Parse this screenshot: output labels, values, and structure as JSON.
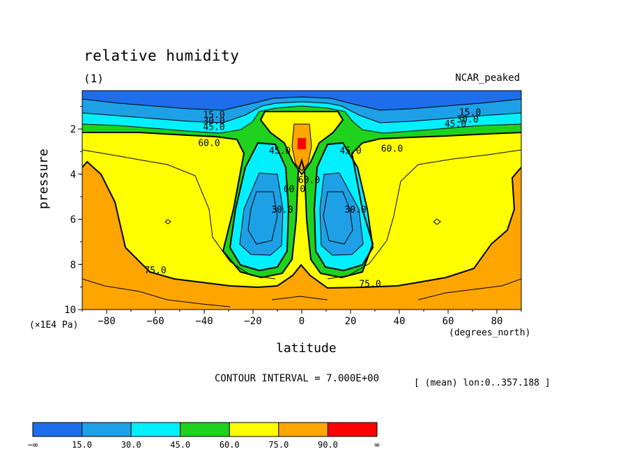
{
  "title": "relative humidity",
  "subtitle": "(1)",
  "config_label": "NCAR_peaked",
  "contour_interval_label": "CONTOUR INTERVAL = 7.000E+00",
  "mean_label": "[ (mean) lon:0..357.188 ]",
  "colors": {
    "below_15": "#1e6eeb",
    "15_30": "#1ea0e6",
    "30_45": "#00f0ff",
    "45_60": "#1ed21e",
    "60_75": "#ffff00",
    "75_90": "#ffa500",
    "above_90": "#ff0000"
  },
  "chart_data": {
    "type": "contour",
    "variable": "relative humidity",
    "xlabel": "latitude",
    "x_unit": "(degrees_north)",
    "ylabel": "pressure",
    "y_unit": "(×1E4 Pa)",
    "xlim": [
      -90,
      90
    ],
    "ylim": [
      10,
      0.3
    ],
    "x_ticks": [
      -80,
      -60,
      -40,
      -20,
      0,
      20,
      40,
      60,
      80
    ],
    "x_tick_labels": [
      "−80",
      "−60",
      "−40",
      "−20",
      "0",
      "20",
      "40",
      "60",
      "80"
    ],
    "y_ticks": [
      2,
      4,
      6,
      8,
      10
    ],
    "y_tick_labels": [
      "2",
      "4",
      "6",
      "8",
      "10"
    ],
    "contour_interval": 7.0,
    "colorbar": {
      "levels": [
        "−∞",
        "15.0",
        "30.0",
        "45.0",
        "60.0",
        "75.0",
        "90.0",
        "∞"
      ],
      "bins": [
        {
          "range": "<15",
          "color": "#1e6eeb"
        },
        {
          "range": "15-30",
          "color": "#1ea0e6"
        },
        {
          "range": "30-45",
          "color": "#00f0ff"
        },
        {
          "range": "45-60",
          "color": "#1ed21e"
        },
        {
          "range": "60-75",
          "color": "#ffff00"
        },
        {
          "range": "75-90",
          "color": "#ffa500"
        },
        {
          "range": ">90",
          "color": "#ff0000"
        }
      ]
    },
    "contour_labels": [
      {
        "text": "15.0",
        "lat": -36,
        "p": 1.5
      },
      {
        "text": "30.0",
        "lat": -36,
        "p": 1.78
      },
      {
        "text": "45.0",
        "lat": -36,
        "p": 2.05
      },
      {
        "text": "60.0",
        "lat": -38,
        "p": 2.75
      },
      {
        "text": "75.0",
        "lat": -60,
        "p": 8.4
      },
      {
        "text": "45.0",
        "lat": -9,
        "p": 3.1
      },
      {
        "text": "30.0",
        "lat": -8,
        "p": 5.7
      },
      {
        "text": "60.0",
        "lat": -3,
        "p": 4.8
      },
      {
        "text": "60.0",
        "lat": 3,
        "p": 4.4
      },
      {
        "text": "45.0",
        "lat": 20,
        "p": 3.1
      },
      {
        "text": "30.0",
        "lat": 22,
        "p": 5.7
      },
      {
        "text": "60.0",
        "lat": 37,
        "p": 3.0
      },
      {
        "text": "75.0",
        "lat": 28,
        "p": 9.0
      },
      {
        "text": "15.0",
        "lat": 69,
        "p": 1.4
      },
      {
        "text": "30.0",
        "lat": 68,
        "p": 1.7
      },
      {
        "text": "45.0",
        "lat": 63,
        "p": 1.9
      }
    ]
  }
}
